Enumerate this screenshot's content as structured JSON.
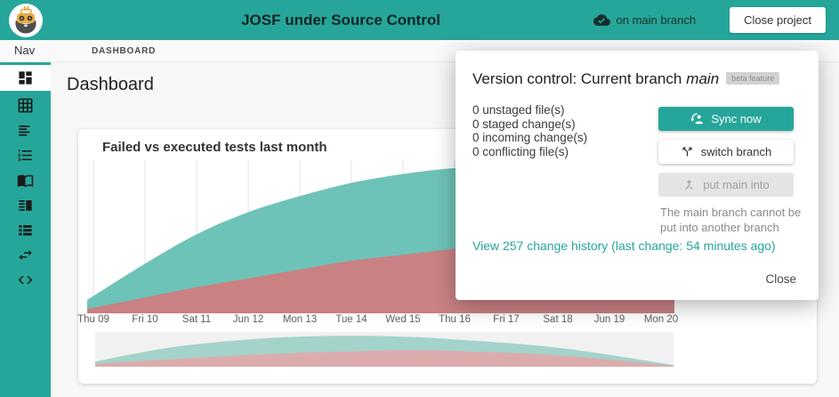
{
  "header": {
    "title": "JOSF under Source Control",
    "branch_status": "on main branch",
    "close_project": "Close project"
  },
  "nav_bar": {
    "nav_label": "Nav",
    "breadcrumb": "DASHBOARD"
  },
  "sidebar": {
    "icons": [
      "dashboard-grid-icon",
      "table-grid-icon",
      "text-lines-icon",
      "numbered-list-icon",
      "book-icon",
      "split-view-icon",
      "list-boxes-icon",
      "swap-arrows-icon",
      "code-icon"
    ],
    "active_index": 0
  },
  "page": {
    "title": "Dashboard"
  },
  "chart_data": {
    "type": "area",
    "title": "Failed vs executed tests last month",
    "categories": [
      "Thu 09",
      "Fri 10",
      "Sat 11",
      "Jun 12",
      "Mon 13",
      "Tue 14",
      "Wed 15",
      "Thu 16",
      "Fri 17",
      "Sat 18",
      "Jun 19",
      "Mon 20"
    ],
    "series": [
      {
        "name": "executed tests",
        "color": "#6ec3b8",
        "values": [
          10,
          32,
          52,
          67,
          78,
          87,
          93,
          97,
          98,
          97,
          93,
          87
        ]
      },
      {
        "name": "failed tests",
        "color": "#c98184",
        "values": [
          2,
          9,
          16,
          22,
          28,
          34,
          38,
          42,
          45,
          48,
          49,
          47
        ]
      }
    ],
    "xlabel": "",
    "ylabel": "",
    "legend_position": "none",
    "grid": "vertical-only",
    "navigator": {
      "present": true,
      "colors": [
        "#a3d3cb",
        "#dcacad"
      ],
      "background": "#f1f1f1"
    }
  },
  "popup": {
    "title_prefix": "Version control: Current branch",
    "branch": "main",
    "badge": "beta feature",
    "stats": [
      "0 unstaged file(s)",
      "0 staged change(s)",
      "0 incoming change(s)",
      "0 conflicting file(s)"
    ],
    "buttons": {
      "sync": "Sync now",
      "switch": "switch branch",
      "put": "put main into"
    },
    "put_note": "The main branch cannot be put into another branch",
    "history_link": "View 257 change history (last change: 54 minutes ago)",
    "close_label": "Close"
  },
  "colors": {
    "accent": "#26a69a",
    "chart_executed": "#6ec3b8",
    "chart_failed": "#c98184",
    "gridline": "#e0e0e0"
  }
}
